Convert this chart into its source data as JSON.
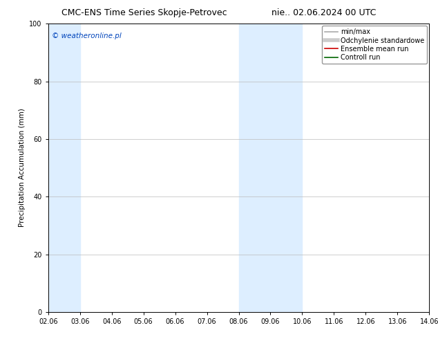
{
  "title_left": "CMC-ENS Time Series Skopje-Petrovec",
  "title_right": "nie.. 02.06.2024 00 UTC",
  "ylabel": "Precipitation Accumulation (mm)",
  "watermark": "© weatheronline.pl",
  "watermark_color": "#0044bb",
  "xlim": [
    2.06,
    14.06
  ],
  "ylim": [
    0,
    100
  ],
  "yticks": [
    0,
    20,
    40,
    60,
    80,
    100
  ],
  "xtick_labels": [
    "02.06",
    "03.06",
    "04.06",
    "05.06",
    "06.06",
    "07.06",
    "08.06",
    "09.06",
    "10.06",
    "11.06",
    "12.06",
    "13.06",
    "14.06"
  ],
  "xtick_values": [
    2.06,
    3.06,
    4.06,
    5.06,
    6.06,
    7.06,
    8.06,
    9.06,
    10.06,
    11.06,
    12.06,
    13.06,
    14.06
  ],
  "shaded_bands": [
    {
      "x_start": 2.06,
      "x_end": 3.06,
      "color": "#ddeeff",
      "alpha": 1.0
    },
    {
      "x_start": 8.06,
      "x_end": 9.06,
      "color": "#ddeeff",
      "alpha": 1.0
    },
    {
      "x_start": 9.06,
      "x_end": 10.06,
      "color": "#ddeeff",
      "alpha": 1.0
    }
  ],
  "legend_entries": [
    {
      "label": "min/max",
      "color": "#aaaaaa",
      "lw": 1.2,
      "linestyle": "-"
    },
    {
      "label": "Odchylenie standardowe",
      "color": "#cccccc",
      "lw": 4,
      "linestyle": "-"
    },
    {
      "label": "Ensemble mean run",
      "color": "#cc0000",
      "lw": 1.2,
      "linestyle": "-"
    },
    {
      "label": "Controll run",
      "color": "#006600",
      "lw": 1.2,
      "linestyle": "-"
    }
  ],
  "bg_color": "#ffffff",
  "plot_bg_color": "#ffffff",
  "title_fontsize": 9,
  "axis_label_fontsize": 7.5,
  "tick_fontsize": 7,
  "legend_fontsize": 7,
  "watermark_fontsize": 7.5
}
